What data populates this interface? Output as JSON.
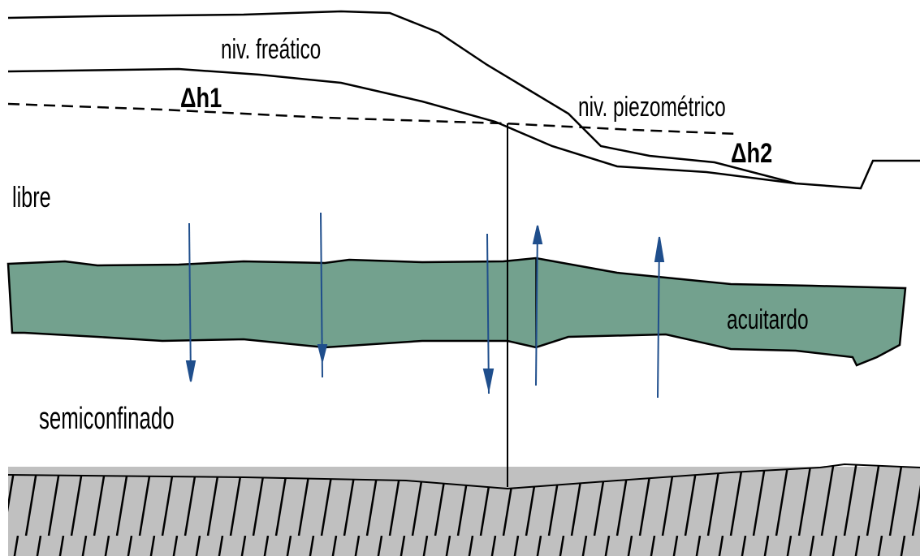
{
  "labels": {
    "water_table": "niv. freático",
    "piezometric": "niv. piezométrico",
    "delta_h1": "Δh1",
    "delta_h2": "Δh2",
    "free_aquifer": "libre",
    "aquitard": "acuitardo",
    "semiconfined": "semiconfinado"
  }
}
